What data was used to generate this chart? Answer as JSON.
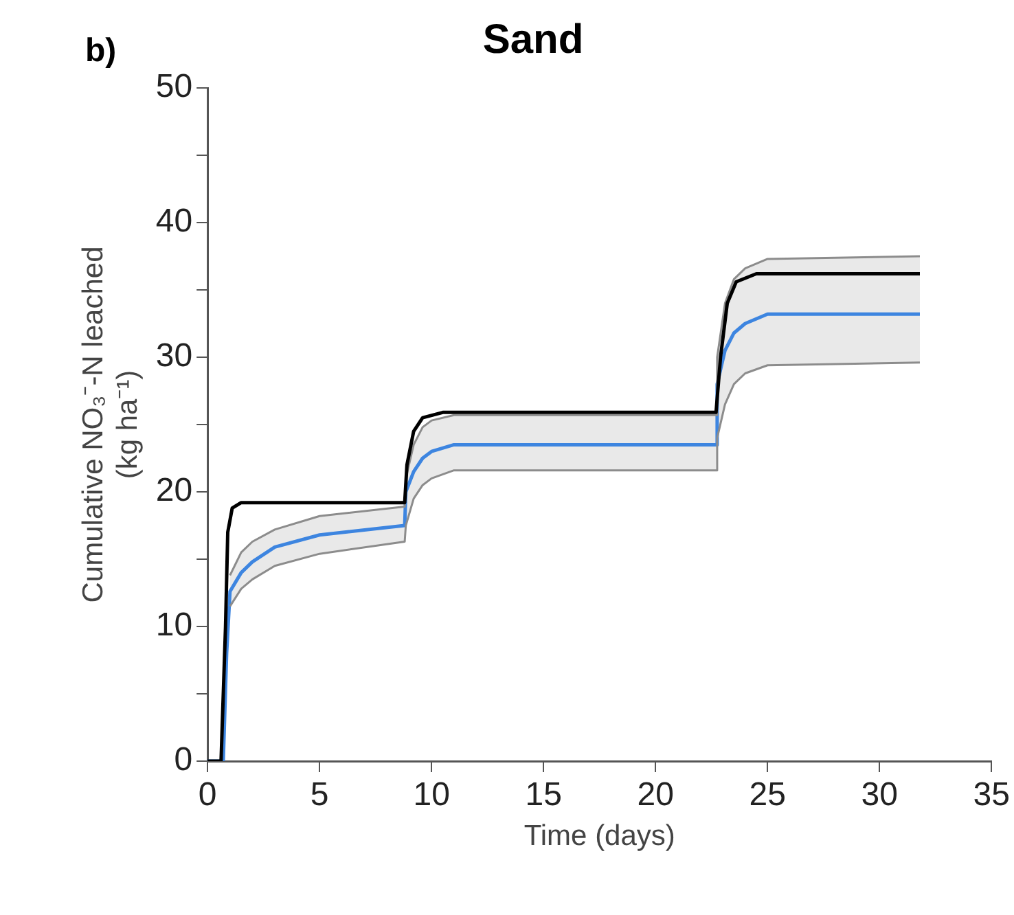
{
  "chart_data": {
    "type": "line",
    "title": "Sand",
    "xlabel": "Time (days)",
    "ylabel": "Cumulative NO₃⁻-N leached\n(kg ha⁻¹)",
    "annotations": [
      "b)"
    ],
    "xlim": [
      0,
      35
    ],
    "xticks": [
      0,
      5,
      10,
      15,
      20,
      25,
      30,
      35
    ],
    "ylim": [
      0,
      50
    ],
    "yticks": [
      0,
      {
        "value": 5,
        "label": null
      },
      10,
      {
        "value": 15,
        "label": null
      },
      20,
      {
        "value": 25,
        "label": null
      },
      30,
      {
        "value": 35,
        "label": null
      },
      40,
      {
        "value": 45,
        "label": null
      },
      50
    ],
    "grid": false,
    "legend": false,
    "marker": "none",
    "line_style": "solid",
    "series": [
      {
        "color": "#000000",
        "x": [
          0,
          0.6,
          0.8,
          0.9,
          1.1,
          1.5,
          8.8,
          8.9,
          9.2,
          9.6,
          10.5,
          22.7,
          22.9,
          23.2,
          23.6,
          24.5,
          31.8
        ],
        "values": [
          0,
          0,
          10,
          17,
          18.8,
          19.2,
          19.2,
          22,
          24.5,
          25.5,
          25.9,
          25.9,
          30,
          34,
          35.6,
          36.2,
          36.2
        ]
      },
      {
        "color": "#8c8c8c",
        "x": [
          1,
          1.5,
          2,
          3,
          5,
          8.8,
          8.85,
          9.2,
          9.6,
          10,
          11,
          22.7,
          22.75,
          23.1,
          23.5,
          24,
          25,
          31.8
        ],
        "values": [
          11.5,
          12.8,
          13.5,
          14.5,
          15.4,
          16.3,
          17.5,
          19.5,
          20.5,
          21,
          21.6,
          21.6,
          24,
          26.5,
          28,
          28.8,
          29.4,
          29.6
        ]
      },
      {
        "color": "#8c8c8c",
        "x": [
          1,
          1.5,
          2,
          3,
          5,
          8.8,
          8.85,
          9.2,
          9.6,
          10,
          11,
          22.7,
          22.75,
          23.1,
          23.5,
          24,
          25,
          31.8
        ],
        "values": [
          13.8,
          15.5,
          16.3,
          17.2,
          18.2,
          18.9,
          21,
          23.5,
          24.8,
          25.3,
          25.7,
          25.7,
          30,
          34,
          35.8,
          36.6,
          37.3,
          37.5
        ]
      },
      {
        "color": "#3d85e0",
        "x": [
          0,
          0.7,
          0.85,
          1,
          1.5,
          2,
          3,
          5,
          8.8,
          8.85,
          9.2,
          9.6,
          10,
          11,
          22.7,
          22.75,
          23.1,
          23.5,
          24,
          25,
          31.8
        ],
        "values": [
          0,
          0,
          8,
          12.6,
          14,
          14.8,
          15.9,
          16.8,
          17.5,
          20,
          21.5,
          22.5,
          23,
          23.5,
          23.5,
          28,
          30.5,
          31.8,
          32.5,
          33.2,
          33.2
        ],
        "lower": [
          null,
          null,
          null,
          11.5,
          12.8,
          13.5,
          14.5,
          15.4,
          16.3,
          17.5,
          19.5,
          20.5,
          21,
          21.6,
          21.6,
          24,
          26.5,
          28,
          28.8,
          29.4,
          29.6
        ],
        "upper": [
          null,
          null,
          null,
          13.8,
          15.5,
          16.3,
          17.2,
          18.2,
          18.9,
          21,
          23.5,
          24.8,
          25.3,
          25.7,
          25.7,
          30,
          34,
          35.8,
          36.6,
          37.3,
          37.5
        ]
      }
    ]
  }
}
